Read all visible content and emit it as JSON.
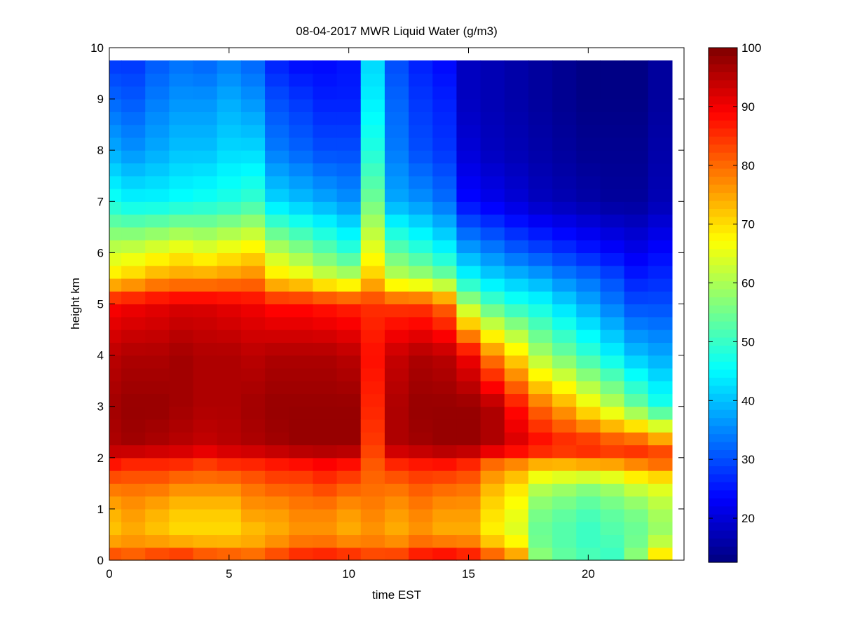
{
  "chart_data": {
    "type": "heatmap",
    "title": "08-04-2017 MWR Liquid Water (g/m3)",
    "xlabel": "time EST",
    "ylabel": "height km",
    "xlim": [
      0,
      24
    ],
    "ylim": [
      0,
      10
    ],
    "x_ticks": [
      "0",
      "5",
      "10",
      "15",
      "20"
    ],
    "x_tick_values": [
      0,
      5,
      10,
      15,
      20
    ],
    "y_ticks": [
      "0",
      "1",
      "2",
      "3",
      "4",
      "5",
      "6",
      "7",
      "8",
      "9",
      "10"
    ],
    "y_tick_values": [
      0,
      1,
      2,
      3,
      4,
      5,
      6,
      7,
      8,
      9,
      10
    ],
    "colorbar": {
      "colormap": "jet",
      "range": [
        12.5,
        100
      ],
      "ticks": [
        "20",
        "30",
        "40",
        "50",
        "60",
        "70",
        "80",
        "90",
        "100"
      ],
      "tick_values": [
        20,
        30,
        40,
        50,
        60,
        70,
        80,
        90,
        100
      ]
    },
    "x_centers": [
      0,
      1,
      2,
      3,
      4,
      5,
      6,
      7,
      8,
      9,
      10,
      11,
      12,
      13,
      14,
      15,
      16,
      17,
      18,
      19,
      20,
      21,
      22,
      23
    ],
    "y_profile_heights": [
      0.0,
      0.5,
      1.0,
      1.5,
      2.0,
      2.2,
      3.0,
      4.0,
      5.0,
      5.5,
      6.0,
      7.0,
      8.0,
      9.0,
      9.75
    ],
    "y_extent": [
      0,
      9.75
    ],
    "values": [
      [
        85,
        72,
        74,
        80,
        90,
        96,
        97,
        95,
        89,
        70,
        63,
        47,
        38,
        32,
        28
      ],
      [
        83,
        74,
        76,
        80,
        88,
        97,
        98,
        96,
        90,
        72,
        64,
        45,
        36,
        31,
        28
      ],
      [
        86,
        72,
        74,
        80,
        88,
        96,
        98,
        96,
        91,
        75,
        66,
        45,
        38,
        34,
        31
      ],
      [
        88,
        70,
        72,
        78,
        88,
        95,
        97,
        97,
        92,
        76,
        68,
        46,
        40,
        36,
        33
      ],
      [
        85,
        70,
        72,
        78,
        86,
        94,
        96,
        96,
        92,
        76,
        66,
        47,
        40,
        36,
        32
      ],
      [
        84,
        70,
        72,
        78,
        88,
        95,
        96,
        96,
        91,
        77,
        68,
        48,
        42,
        38,
        34
      ],
      [
        82,
        72,
        76,
        80,
        88,
        96,
        97,
        95,
        90,
        78,
        70,
        50,
        42,
        36,
        32
      ],
      [
        85,
        74,
        76,
        82,
        89,
        97,
        98,
        96,
        88,
        70,
        62,
        42,
        34,
        30,
        26
      ],
      [
        88,
        76,
        78,
        82,
        90,
        98,
        98,
        96,
        88,
        68,
        58,
        40,
        32,
        28,
        24
      ],
      [
        89,
        76,
        78,
        84,
        91,
        98,
        98,
        96,
        87,
        64,
        54,
        38,
        30,
        26,
        24
      ],
      [
        88,
        74,
        76,
        82,
        90,
        98,
        98,
        95,
        86,
        62,
        50,
        36,
        30,
        26,
        25
      ],
      [
        85,
        76,
        78,
        80,
        82,
        84,
        86,
        88,
        85,
        72,
        66,
        55,
        48,
        44,
        42
      ],
      [
        86,
        74,
        76,
        80,
        88,
        96,
        96,
        94,
        84,
        62,
        54,
        38,
        34,
        32,
        30
      ],
      [
        90,
        76,
        78,
        82,
        89,
        97,
        98,
        96,
        84,
        60,
        50,
        36,
        30,
        28,
        26
      ],
      [
        92,
        74,
        76,
        81,
        90,
        98,
        98,
        95,
        80,
        56,
        46,
        33,
        28,
        26,
        24
      ],
      [
        90,
        74,
        76,
        80,
        88,
        98,
        98,
        90,
        60,
        46,
        38,
        24,
        20,
        18,
        18
      ],
      [
        84,
        68,
        70,
        74,
        82,
        96,
        96,
        78,
        52,
        42,
        35,
        22,
        18,
        17,
        17
      ],
      [
        78,
        64,
        66,
        70,
        80,
        93,
        88,
        70,
        48,
        40,
        32,
        20,
        17,
        16,
        16
      ],
      [
        58,
        54,
        56,
        62,
        78,
        90,
        80,
        60,
        46,
        38,
        30,
        18,
        16,
        15,
        15
      ],
      [
        54,
        52,
        54,
        60,
        78,
        88,
        75,
        55,
        42,
        35,
        28,
        17,
        15,
        14,
        14
      ],
      [
        52,
        50,
        52,
        58,
        80,
        88,
        68,
        50,
        38,
        33,
        26,
        16,
        14,
        13,
        13
      ],
      [
        50,
        52,
        54,
        60,
        80,
        86,
        62,
        45,
        34,
        30,
        24,
        15,
        14,
        13,
        13
      ],
      [
        58,
        54,
        56,
        64,
        82,
        86,
        55,
        40,
        30,
        26,
        22,
        15,
        14,
        13,
        13
      ],
      [
        72,
        58,
        60,
        66,
        84,
        82,
        48,
        38,
        30,
        27,
        24,
        17,
        16,
        15,
        15
      ]
    ]
  }
}
